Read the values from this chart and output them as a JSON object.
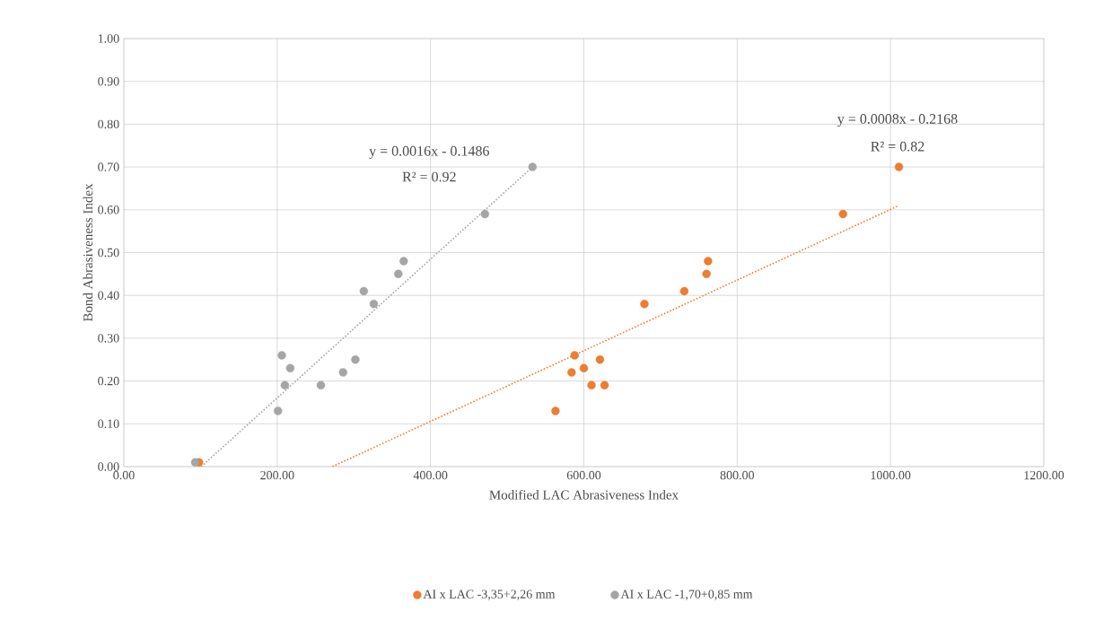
{
  "chart_data": {
    "type": "scatter",
    "xlabel": "Modified LAC Abrasiveness Index",
    "ylabel": "Bond Abrasiveness Index",
    "xlim": [
      0,
      1200
    ],
    "ylim": [
      0,
      1
    ],
    "xticks": [
      {
        "value": 0,
        "label": "0.00"
      },
      {
        "value": 200,
        "label": "200.00"
      },
      {
        "value": 400,
        "label": "400.00"
      },
      {
        "value": 600,
        "label": "600.00"
      },
      {
        "value": 800,
        "label": "800.00"
      },
      {
        "value": 1000,
        "label": "1000.00"
      },
      {
        "value": 1200,
        "label": "1200.00"
      }
    ],
    "yticks": [
      {
        "value": 0,
        "label": "0.00"
      },
      {
        "value": 0.1,
        "label": "0.10"
      },
      {
        "value": 0.2,
        "label": "0.20"
      },
      {
        "value": 0.3,
        "label": "0.30"
      },
      {
        "value": 0.4,
        "label": "0.40"
      },
      {
        "value": 0.5,
        "label": "0.50"
      },
      {
        "value": 0.6,
        "label": "0.60"
      },
      {
        "value": 0.7,
        "label": "0.70"
      },
      {
        "value": 0.8,
        "label": "0.80"
      },
      {
        "value": 0.9,
        "label": "0.90"
      },
      {
        "value": 1,
        "label": "1.00"
      }
    ],
    "grid": true,
    "legend": "bottom",
    "series": [
      {
        "name": "AI x LAC -3,35+2,26 mm",
        "marker": "circle",
        "color": "#ed7d31",
        "x": [
          98,
          563,
          584,
          588,
          600,
          610,
          621,
          627,
          679,
          731,
          760,
          762,
          938,
          1011
        ],
        "values": [
          0.01,
          0.13,
          0.22,
          0.26,
          0.23,
          0.19,
          0.25,
          0.19,
          0.38,
          0.41,
          0.45,
          0.48,
          0.59,
          0.7
        ]
      },
      {
        "name": "AI x LAC -1,70+0,85 mm",
        "marker": "circle",
        "color": "#a5a5a5",
        "x": [
          93,
          201,
          206,
          210,
          217,
          257,
          286,
          302,
          313,
          326,
          358,
          365,
          471,
          533
        ],
        "values": [
          0.01,
          0.13,
          0.26,
          0.19,
          0.23,
          0.19,
          0.22,
          0.25,
          0.41,
          0.38,
          0.45,
          0.48,
          0.59,
          0.7
        ]
      },
      {
        "type": "line",
        "marker": "none",
        "line_style": "dotted",
        "color": "#ed7d31",
        "x": [
          272,
          1011
        ],
        "values": [
          0.0,
          0.61
        ]
      },
      {
        "type": "line",
        "marker": "none",
        "line_style": "dotted",
        "color": "#a5a5a5",
        "x": [
          101,
          533
        ],
        "values": [
          0.0,
          0.7
        ]
      }
    ],
    "annotations": [
      "y = 0.0016x - 0.1486",
      "R² = 0.92",
      "y = 0.0008x - 0.2168",
      "R² = 0.82"
    ]
  }
}
